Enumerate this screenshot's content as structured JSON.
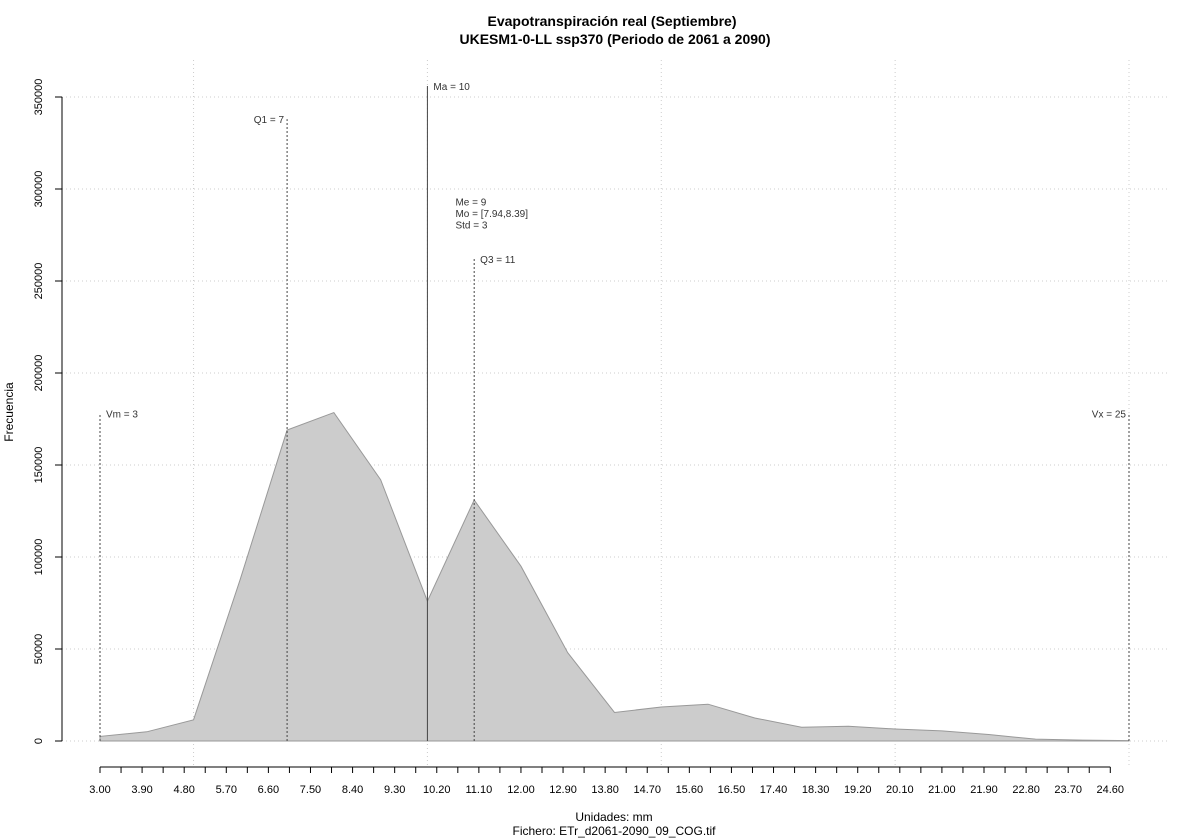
{
  "chart_data": {
    "type": "area",
    "title": "Evapotranspiración real (Septiembre)",
    "subtitle": "UKESM1-0-LL ssp370 (Periodo de 2061 a 2090)",
    "xlabel": "Unidades: mm",
    "ylabel": "Frecuencia",
    "footer": "Fichero: ETr_d2061-2090_09_COG.tif",
    "xlim": [
      3.0,
      25.0
    ],
    "ylim": [
      0,
      350000
    ],
    "x_tick_labels": [
      "3.00",
      "3.90",
      "4.80",
      "5.70",
      "6.60",
      "7.50",
      "8.40",
      "9.30",
      "10.20",
      "11.10",
      "12.00",
      "12.90",
      "13.80",
      "14.70",
      "15.60",
      "16.50",
      "17.40",
      "18.30",
      "19.20",
      "20.10",
      "21.00",
      "21.90",
      "22.80",
      "23.70",
      "24.60"
    ],
    "x_ticks": [
      3.0,
      3.9,
      4.8,
      5.7,
      6.6,
      7.5,
      8.4,
      9.3,
      10.2,
      11.1,
      12.0,
      12.9,
      13.8,
      14.7,
      15.6,
      16.5,
      17.4,
      18.3,
      19.2,
      20.1,
      21.0,
      21.9,
      22.8,
      23.7,
      24.6
    ],
    "y_ticks": [
      0,
      50000,
      100000,
      150000,
      200000,
      250000,
      300000,
      350000
    ],
    "y_tick_labels": [
      "0",
      "50000",
      "100000",
      "150000",
      "200000",
      "250000",
      "300000",
      "350000"
    ],
    "x_grid": [
      5,
      10,
      15,
      20,
      25
    ],
    "grid": true,
    "fill_color": "#cccccc",
    "line_color": "#999999",
    "x": [
      3,
      4,
      5,
      6,
      7,
      8,
      9,
      10,
      11,
      12,
      13,
      14,
      15,
      16,
      17,
      18,
      19,
      20,
      21,
      22,
      23,
      24,
      25
    ],
    "values": [
      2500,
      5000,
      11500,
      88000,
      169000,
      178500,
      142000,
      76000,
      131000,
      95000,
      48000,
      15500,
      18500,
      20000,
      12500,
      7500,
      8000,
      6500,
      5500,
      3500,
      1000,
      500,
      200
    ],
    "stat_lines": [
      {
        "label": "Vm = 3",
        "x": 3,
        "y": 178000,
        "style": "dotted",
        "label_side": "right"
      },
      {
        "label": "Q1 = 7",
        "x": 7,
        "y": 338000,
        "style": "dotted",
        "label_side": "left"
      },
      {
        "label": "Ma = 10",
        "x": 10,
        "y": 356000,
        "style": "solid",
        "label_side": "right"
      },
      {
        "label": "Q3 = 11",
        "x": 11,
        "y": 262000,
        "style": "dotted",
        "label_side": "right"
      },
      {
        "label": "Vx = 25",
        "x": 25,
        "y": 178000,
        "style": "dotted",
        "label_side": "left"
      }
    ],
    "stats_block": {
      "x": 10.6,
      "y": 291000,
      "lines": [
        "Me = 9",
        "Mo = [7.94,8.39]",
        "Std = 3"
      ]
    }
  }
}
